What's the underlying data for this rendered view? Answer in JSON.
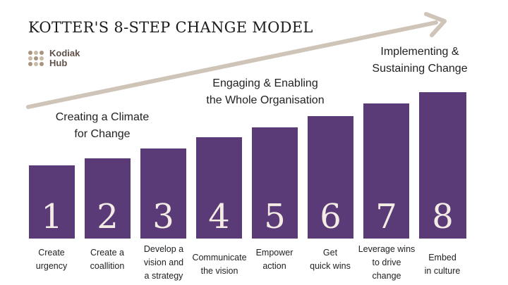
{
  "title": "KOTTER'S 8-STEP CHANGE MODEL",
  "logo": {
    "line1": "Kodiak",
    "line2": "Hub",
    "icon": "dot-grid-logo-icon"
  },
  "phases": [
    {
      "line1": "Creating a Climate",
      "line2": "for Change"
    },
    {
      "line1": "Engaging & Enabling",
      "line2": "the Whole Organisation"
    },
    {
      "line1": "Implementing &",
      "line2": "Sustaining Change"
    }
  ],
  "steps": [
    {
      "number": "1",
      "lines": [
        "Create",
        "urgency"
      ]
    },
    {
      "number": "2",
      "lines": [
        "Create a",
        "coallition"
      ]
    },
    {
      "number": "3",
      "lines": [
        "Develop a",
        "vision and",
        "a strategy"
      ]
    },
    {
      "number": "4",
      "lines": [
        "Communicate",
        "the vision"
      ]
    },
    {
      "number": "5",
      "lines": [
        "Empower",
        "action"
      ]
    },
    {
      "number": "6",
      "lines": [
        "Get",
        "quick wins"
      ]
    },
    {
      "number": "7",
      "lines": [
        "Leverage wins",
        "to drive",
        "change"
      ]
    },
    {
      "number": "8",
      "lines": [
        "Embed",
        "in culture"
      ]
    }
  ],
  "colors": {
    "bar": "#5b3a78",
    "number": "#f3ece4",
    "arrow": "#cfc4b8",
    "text": "#222222"
  }
}
